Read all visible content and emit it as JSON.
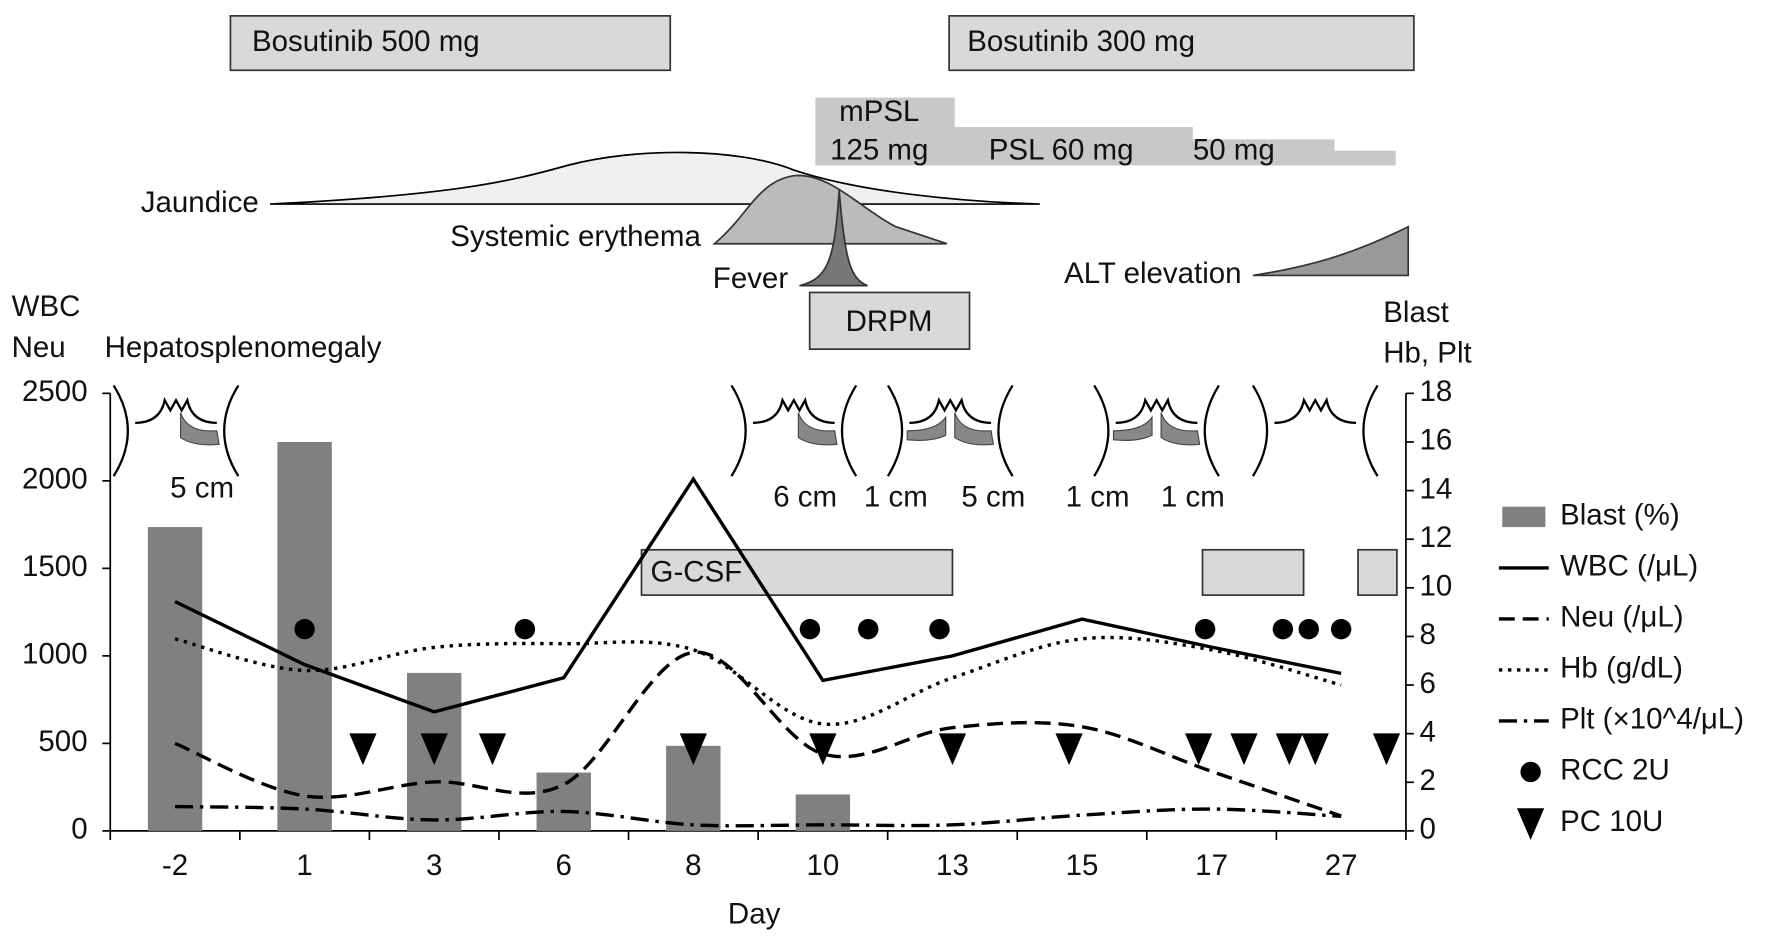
{
  "chart_data": {
    "type": "combo",
    "categories": [
      "-2",
      "1",
      "3",
      "6",
      "8",
      "10",
      "13",
      "15",
      "17",
      "27"
    ],
    "x_label": "Day",
    "left_axis_label": [
      "WBC",
      "Neu"
    ],
    "right_axis_label": [
      "Blast",
      "Hb, Plt"
    ],
    "ylim": [
      0,
      2500
    ],
    "yticks": [
      0,
      500,
      1000,
      1500,
      2000,
      2500
    ],
    "y2lim": [
      0,
      18
    ],
    "y2ticks": [
      0,
      2,
      4,
      6,
      8,
      10,
      12,
      14,
      16,
      18
    ],
    "series": [
      {
        "name": "Blast (%)",
        "type": "bar",
        "axis": "y2",
        "color": "#808080",
        "values": [
          12.5,
          16,
          6.5,
          2.4,
          3.5,
          1.5,
          null,
          null,
          null,
          null
        ]
      },
      {
        "name": "WBC (/μL)",
        "type": "line",
        "dash": "solid",
        "color": "#000000",
        "values": [
          1310,
          950,
          680,
          875,
          2010,
          860,
          1000,
          1210,
          1050,
          900
        ]
      },
      {
        "name": "Neu (/μL)",
        "type": "line",
        "dash": "dashed",
        "color": "#000000",
        "values": [
          500,
          200,
          280,
          265,
          1020,
          440,
          590,
          595,
          340,
          85
        ]
      },
      {
        "name": "Hb (g/dL)",
        "type": "line",
        "axis": "y2",
        "dash": "dotted",
        "color": "#000000",
        "values": [
          7.9,
          6.6,
          7.55,
          7.7,
          7.45,
          4.4,
          6.3,
          7.9,
          7.45,
          6.0
        ]
      },
      {
        "name": "Plt (×10^4/μL)",
        "type": "line",
        "axis": "y2",
        "dash": "dashdot",
        "color": "#000000",
        "values": [
          1.0,
          0.9,
          0.45,
          0.8,
          0.25,
          0.25,
          0.25,
          0.65,
          0.9,
          0.6
        ]
      }
    ],
    "events": [
      {
        "name": "RCC 2U",
        "marker": "circle",
        "x": [
          1,
          2.7,
          4.9,
          5.35,
          5.9,
          7.95,
          8.55,
          8.75,
          9
        ]
      },
      {
        "name": "PC 10U",
        "marker": "triangle",
        "x": [
          1.45,
          2,
          2.45,
          4,
          5,
          6,
          6.9,
          7.9,
          8.25,
          8.6,
          8.8,
          9.35
        ]
      }
    ],
    "gcsf": {
      "label": "G-CSF",
      "spans": [
        [
          3.6,
          6
        ],
        [
          7.93,
          8.71
        ],
        [
          9.13,
          9.43
        ]
      ]
    }
  },
  "timeline": {
    "bosutinib": [
      "Bosutinib 500 mg",
      "Bosutinib 300 mg"
    ],
    "steroids": [
      "mPSL",
      "125 mg",
      "PSL 60 mg",
      "50 mg"
    ],
    "symptoms": [
      "Jaundice",
      "Systemic erythema",
      "Fever",
      "ALT elevation"
    ],
    "drpm": "DRPM"
  },
  "hepatosplenomegaly": {
    "label": "Hepatosplenomegaly",
    "sizes": [
      "5 cm",
      "6 cm",
      "1 cm",
      "5 cm",
      "1 cm",
      "1 cm"
    ]
  }
}
